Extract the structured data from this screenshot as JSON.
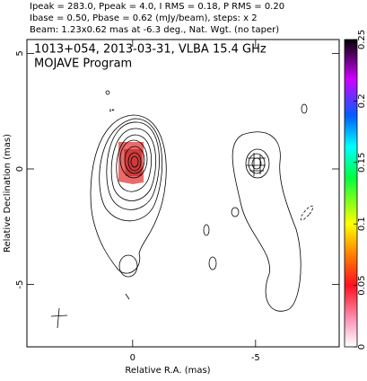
{
  "chart_data": {
    "type": "contour",
    "header": [
      "Ipeak = 283.0, Ppeak = 4.0, I RMS = 0.18, P RMS = 0.20",
      "Ibase = 0.50, Pbase = 0.62 (mJy/beam), steps: x 2",
      "Beam: 1.23x0.62 mas at -6.3 deg., Nat. Wgt. (no taper)"
    ],
    "title": "1013+054, 2013-03-31, VLBA 15.4 GHz",
    "subtitle": "MOJAVE Program",
    "xlabel": "Relative R.A. (mas)",
    "ylabel": "Relative Declination (mas)",
    "xlim": [
      4.3,
      -8.4
    ],
    "xticks": [
      0,
      -5
    ],
    "ylim": [
      -7.7,
      5.6
    ],
    "yticks": [
      5,
      0,
      -5
    ],
    "colorbar": {
      "lim": [
        0,
        0.25
      ],
      "ticks": [
        0,
        0.05,
        0.1,
        0.15,
        0.2,
        0.25
      ]
    }
  }
}
